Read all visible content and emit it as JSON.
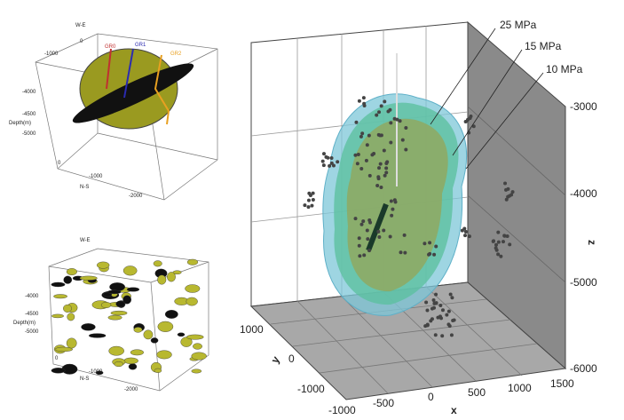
{
  "main_panel": {
    "contour_labels": [
      "25 MPa",
      "15 MPa",
      "10 MPa"
    ],
    "z_axis": {
      "label": "z",
      "ticks": [
        "-3000",
        "-4000",
        "-5000",
        "-6000"
      ]
    },
    "x_axis": {
      "label": "x",
      "ticks": [
        "-1000",
        "-500",
        "0",
        "500",
        "1000",
        "1500"
      ]
    },
    "y_axis": {
      "label": "y",
      "ticks": [
        "1000",
        "0",
        "-1000"
      ]
    }
  },
  "top_inset": {
    "we_label": "W-E",
    "we_ticks": [
      "0",
      "-1000"
    ],
    "depth_label": "Depth(m)",
    "depth_ticks": [
      "-4000",
      "-4500",
      "-5000"
    ],
    "ns_label": "N-S",
    "ns_ticks": [
      "0",
      "-1000",
      "-2000"
    ],
    "well_labels": [
      "GR0",
      "GR1",
      "GR2"
    ]
  },
  "bottom_inset": {
    "we_label": "W-E",
    "depth_label": "Depth(m)",
    "depth_ticks": [
      "-4000",
      "-4500",
      "-5000"
    ],
    "ns_label": "N-S",
    "ns_ticks": [
      "0",
      "-1000",
      "-2000"
    ]
  }
}
